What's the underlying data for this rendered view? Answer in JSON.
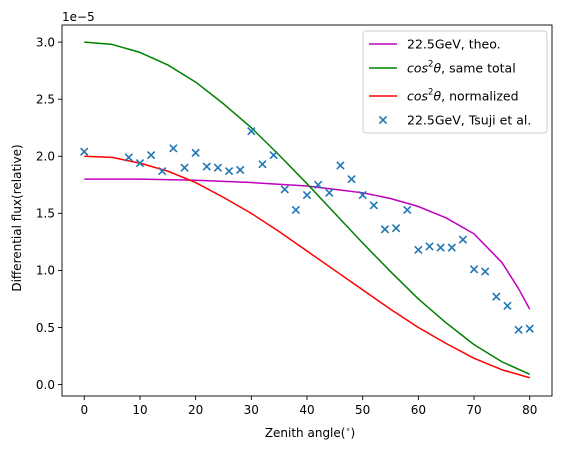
{
  "chart_data": {
    "type": "line",
    "x_label": "Zenith angle(",
    "x_label_unit": "∘",
    "x_label_close": ")",
    "y_label": "Differential flux(relative)",
    "y_offset_label": "1e−5",
    "xlim": [
      -4,
      84
    ],
    "ylim": [
      -0.1,
      3.15
    ],
    "x_ticks": [
      0,
      10,
      20,
      30,
      40,
      50,
      60,
      70,
      80
    ],
    "y_ticks": [
      0.0,
      0.5,
      1.0,
      1.5,
      2.0,
      2.5,
      3.0
    ],
    "y_tick_labels": [
      "0.0",
      "0.5",
      "1.0",
      "1.5",
      "2.0",
      "2.5",
      "3.0"
    ],
    "grid": false,
    "legend_position": "top-right",
    "series": [
      {
        "name": "22.5GeV, theo.",
        "kind": "line",
        "color": "#bf00bf",
        "x": [
          0,
          10,
          20,
          30,
          40,
          45,
          50,
          55,
          60,
          65,
          70,
          75,
          78,
          80
        ],
        "y": [
          1.8,
          1.8,
          1.79,
          1.77,
          1.74,
          1.71,
          1.68,
          1.63,
          1.56,
          1.46,
          1.32,
          1.07,
          0.84,
          0.66
        ]
      },
      {
        "name": "cos²θ, same total",
        "name_parts": [
          "cos",
          "2",
          "θ",
          ", same total"
        ],
        "kind": "line",
        "color": "#008000",
        "x": [
          0,
          5,
          10,
          15,
          20,
          25,
          30,
          35,
          40,
          45,
          50,
          55,
          60,
          65,
          70,
          75,
          80
        ],
        "y": [
          3.0,
          2.98,
          2.91,
          2.8,
          2.65,
          2.46,
          2.25,
          2.01,
          1.76,
          1.5,
          1.24,
          0.99,
          0.75,
          0.54,
          0.35,
          0.2,
          0.09
        ]
      },
      {
        "name": "cos²θ, normalized",
        "name_parts": [
          "cos",
          "2",
          "θ",
          ", normalized"
        ],
        "kind": "line",
        "color": "#ff0000",
        "x": [
          0,
          5,
          10,
          15,
          20,
          25,
          30,
          35,
          40,
          45,
          50,
          55,
          60,
          65,
          70,
          75,
          80
        ],
        "y": [
          2.0,
          1.99,
          1.94,
          1.87,
          1.77,
          1.64,
          1.5,
          1.34,
          1.17,
          1.0,
          0.83,
          0.66,
          0.5,
          0.36,
          0.23,
          0.13,
          0.06
        ]
      },
      {
        "name": "22.5GeV, Tsuji et al.",
        "kind": "scatter",
        "marker": "x",
        "color": "#1f77b4",
        "x": [
          0,
          8,
          10,
          12,
          14,
          16,
          18,
          20,
          22,
          24,
          26,
          28,
          30,
          32,
          34,
          36,
          38,
          40,
          42,
          44,
          46,
          48,
          50,
          52,
          54,
          56,
          58,
          60,
          62,
          64,
          66,
          68,
          70,
          72,
          74,
          76,
          78,
          80
        ],
        "y": [
          2.04,
          1.99,
          1.94,
          2.01,
          1.87,
          2.07,
          1.9,
          2.03,
          1.91,
          1.9,
          1.87,
          1.88,
          2.22,
          1.93,
          2.01,
          1.71,
          1.53,
          1.66,
          1.75,
          1.68,
          1.92,
          1.8,
          1.66,
          1.57,
          1.36,
          1.37,
          1.53,
          1.18,
          1.21,
          1.2,
          1.2,
          1.27,
          1.01,
          0.99,
          0.77,
          0.69,
          0.48,
          0.49
        ]
      }
    ]
  }
}
